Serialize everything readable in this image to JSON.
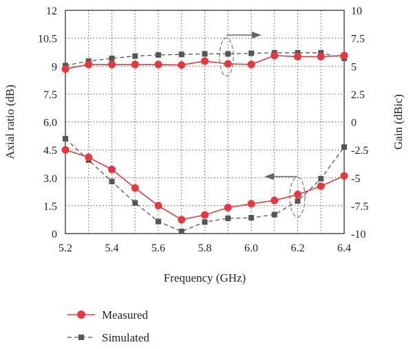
{
  "chart_data": {
    "type": "line",
    "xlabel": "Frequency (GHz)",
    "ylabel_left": "Axial ratio (dB)",
    "ylabel_right": "Gain (dBic)",
    "xlim": [
      5.2,
      6.4
    ],
    "ylim_left": [
      0,
      12
    ],
    "ylim_right": [
      -10,
      10
    ],
    "x_ticks": [
      "5.2",
      "5.4",
      "5.6",
      "5.8",
      "6.0",
      "6.2",
      "6.4"
    ],
    "y_left_ticks": [
      "0",
      "1.5",
      "3.0",
      "4.5",
      "6.0",
      "7.5",
      "9",
      "10.5",
      "12"
    ],
    "y_right_ticks": [
      "-10",
      "-7.5",
      "-5",
      "-2.5",
      "0",
      "2.5",
      "5",
      "7.5",
      "10"
    ],
    "grid": true,
    "legend_position": "below plot",
    "x": [
      5.2,
      5.3,
      5.4,
      5.5,
      5.6,
      5.7,
      5.8,
      5.9,
      6.0,
      6.1,
      6.2,
      6.3,
      6.4
    ],
    "series": [
      {
        "name": "Measured",
        "quantity": "axial ratio",
        "axis": "left",
        "color": "#e8383d",
        "marker": "circle",
        "values": [
          4.5,
          4.1,
          3.45,
          2.45,
          1.5,
          0.75,
          1.0,
          1.4,
          1.6,
          1.78,
          2.1,
          2.55,
          3.1
        ]
      },
      {
        "name": "Simulated",
        "quantity": "axial ratio",
        "axis": "left",
        "color": "#555555",
        "marker": "square",
        "values": [
          5.1,
          3.95,
          2.8,
          1.65,
          0.65,
          0.12,
          0.62,
          0.82,
          0.85,
          1.02,
          1.75,
          2.95,
          4.65
        ]
      },
      {
        "name": "Measured",
        "quantity": "gain",
        "axis": "right",
        "color": "#e8383d",
        "marker": "circle",
        "values": [
          4.75,
          5.15,
          5.15,
          5.15,
          5.15,
          5.1,
          5.45,
          5.2,
          5.15,
          5.95,
          5.85,
          5.85,
          5.95
        ]
      },
      {
        "name": "Simulated",
        "quantity": "gain",
        "axis": "right",
        "color": "#555555",
        "marker": "square",
        "values": [
          5.05,
          5.45,
          5.7,
          5.9,
          6.0,
          6.05,
          6.1,
          6.1,
          6.15,
          6.2,
          6.2,
          6.2,
          5.7
        ]
      }
    ]
  },
  "legend": [
    {
      "label": "Measured",
      "color": "#e8383d",
      "marker": "circle",
      "dashed": false
    },
    {
      "label": "Simulated",
      "color": "#555555",
      "marker": "square",
      "dashed": true
    }
  ]
}
